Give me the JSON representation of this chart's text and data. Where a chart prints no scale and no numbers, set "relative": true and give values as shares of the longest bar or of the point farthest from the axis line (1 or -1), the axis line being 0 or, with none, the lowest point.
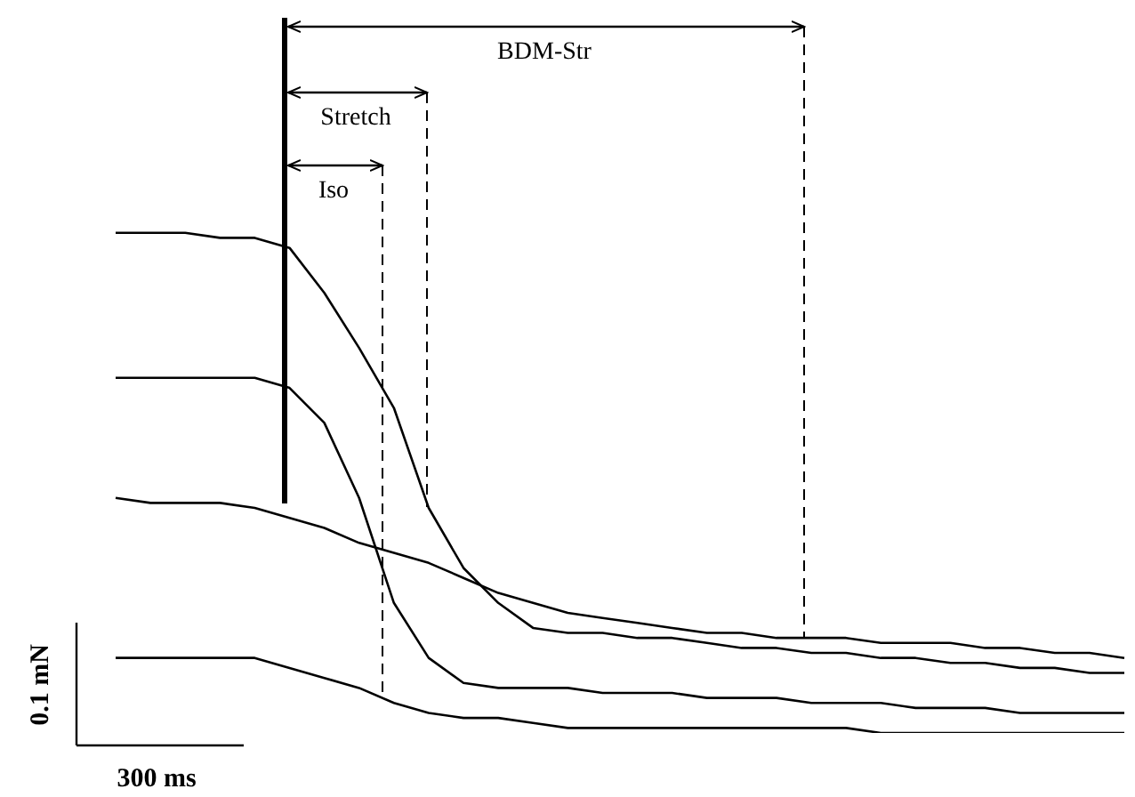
{
  "chart_data": {
    "type": "line",
    "relative": true,
    "grid": false,
    "legend": false,
    "marker": "none",
    "line_style": "solid",
    "categories": [
      null,
      null,
      null,
      null,
      null,
      null,
      null,
      null,
      null,
      null,
      null,
      null,
      null,
      null,
      null,
      null,
      null,
      null,
      null,
      null,
      null,
      null,
      null,
      null,
      null,
      null,
      null,
      null,
      null,
      null
    ],
    "series": [
      {
        "color": "#000000",
        "values": [
          1,
          1,
          1,
          0.99,
          0.99,
          0.97,
          0.88,
          0.77,
          0.65,
          0.45,
          0.33,
          0.26,
          0.21,
          0.2,
          0.2,
          0.19,
          0.19,
          0.18,
          0.17,
          0.17,
          0.16,
          0.16,
          0.15,
          0.15,
          0.14,
          0.14,
          0.13,
          0.13,
          0.12,
          0.12
        ]
      },
      {
        "color": "#000000",
        "values": [
          0.71,
          0.71,
          0.71,
          0.71,
          0.71,
          0.69,
          0.62,
          0.47,
          0.26,
          0.15,
          0.1,
          0.09,
          0.09,
          0.09,
          0.08,
          0.08,
          0.08,
          0.07,
          0.07,
          0.07,
          0.06,
          0.06,
          0.06,
          0.05,
          0.05,
          0.05,
          0.04,
          0.04,
          0.04,
          0.04
        ]
      },
      {
        "color": "#000000",
        "values": [
          0.47,
          0.46,
          0.46,
          0.46,
          0.45,
          0.43,
          0.41,
          0.38,
          0.36,
          0.34,
          0.31,
          0.28,
          0.26,
          0.24,
          0.23,
          0.22,
          0.21,
          0.2,
          0.2,
          0.19,
          0.19,
          0.19,
          0.18,
          0.18,
          0.18,
          0.17,
          0.17,
          0.16,
          0.16,
          0.15
        ]
      },
      {
        "color": "#000000",
        "values": [
          0.15,
          0.15,
          0.15,
          0.15,
          0.15,
          0.13,
          0.11,
          0.09,
          0.06,
          0.04,
          0.03,
          0.03,
          0.02,
          0.01,
          0.01,
          0.01,
          0.01,
          0.01,
          0.01,
          0.01,
          0.01,
          0.01,
          0,
          0,
          0,
          0,
          0,
          0,
          0,
          0
        ]
      }
    ],
    "annotations": [
      "BDM-Str",
      "Stretch",
      "Iso",
      "0.1 mN",
      "300 ms"
    ]
  }
}
